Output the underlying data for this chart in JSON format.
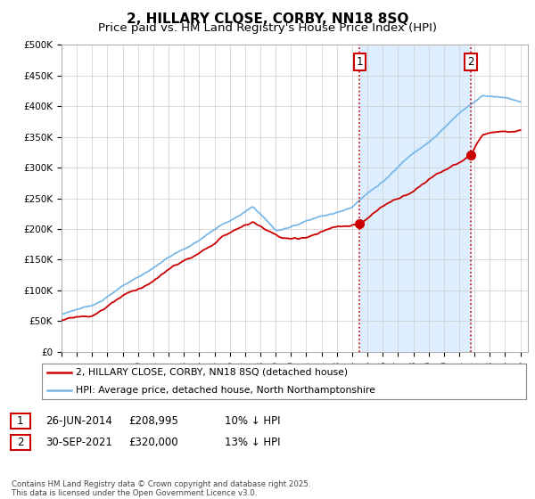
{
  "title": "2, HILLARY CLOSE, CORBY, NN18 8SQ",
  "subtitle": "Price paid vs. HM Land Registry's House Price Index (HPI)",
  "ylim": [
    0,
    500000
  ],
  "yticks": [
    0,
    50000,
    100000,
    150000,
    200000,
    250000,
    300000,
    350000,
    400000,
    450000,
    500000
  ],
  "ytick_labels": [
    "£0",
    "£50K",
    "£100K",
    "£150K",
    "£200K",
    "£250K",
    "£300K",
    "£350K",
    "£400K",
    "£450K",
    "£500K"
  ],
  "xlim_start": 1995.0,
  "xlim_end": 2025.5,
  "hpi_color": "#7ab8e8",
  "price_color": "#cc0000",
  "shade_color": "#ddeeff",
  "marker1_date": 2014.49,
  "marker1_price": 208995,
  "marker2_date": 2021.75,
  "marker2_price": 320000,
  "legend_line1": "2, HILLARY CLOSE, CORBY, NN18 8SQ (detached house)",
  "legend_line2": "HPI: Average price, detached house, North Northamptonshire",
  "table_row1": [
    "1",
    "26-JUN-2014",
    "£208,995",
    "10% ↓ HPI"
  ],
  "table_row2": [
    "2",
    "30-SEP-2021",
    "£320,000",
    "13% ↓ HPI"
  ],
  "footer": "Contains HM Land Registry data © Crown copyright and database right 2025.\nThis data is licensed under the Open Government Licence v3.0.",
  "background_color": "#ffffff",
  "grid_color": "#cccccc",
  "title_fontsize": 11,
  "subtitle_fontsize": 9.5,
  "tick_fontsize": 7.5,
  "vline_color": "#cc0000",
  "box_color": "#cc0000"
}
